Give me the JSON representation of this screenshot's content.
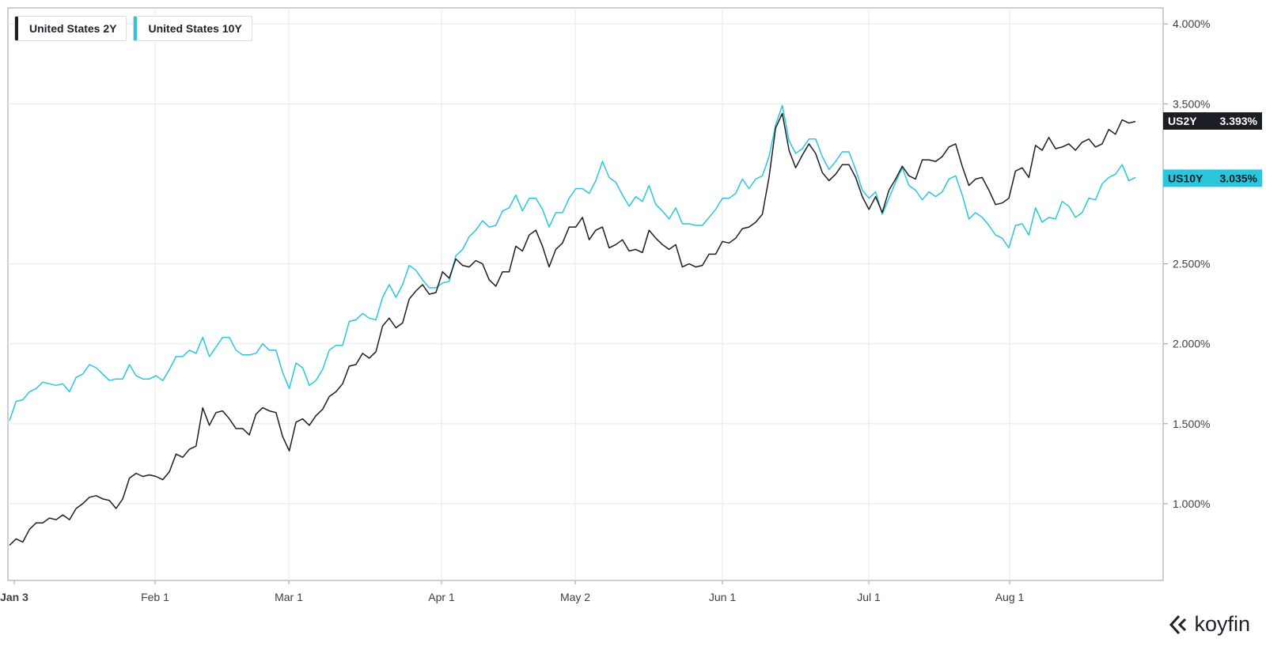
{
  "brand": {
    "name": "koyfin"
  },
  "legend": [
    {
      "label": "United States 2Y",
      "color": "#1b1e24"
    },
    {
      "label": "United States 10Y",
      "color": "#2bc6dc"
    }
  ],
  "chart_data": {
    "type": "line",
    "x_ticks": [
      "Jan 3",
      "Feb 1",
      "Mar 1",
      "Apr 1",
      "May 2",
      "Jun 1",
      "Jul 1",
      "Aug 1"
    ],
    "y_ticks": [
      "1.000%",
      "1.500%",
      "2.000%",
      "2.500%",
      "3.500%",
      "4.000%"
    ],
    "ylim": [
      0.52,
      4.1
    ],
    "grid": true,
    "legend_position": "top-left",
    "series": [
      {
        "name": "United States 2Y",
        "badge": "US2Y",
        "last_value": "3.393%",
        "color": "#1b1e24",
        "values": [
          0.74,
          0.78,
          0.76,
          0.84,
          0.88,
          0.88,
          0.91,
          0.9,
          0.93,
          0.9,
          0.97,
          1.0,
          1.04,
          1.05,
          1.03,
          1.02,
          0.97,
          1.03,
          1.16,
          1.19,
          1.17,
          1.18,
          1.17,
          1.15,
          1.2,
          1.31,
          1.29,
          1.34,
          1.36,
          1.6,
          1.49,
          1.57,
          1.58,
          1.53,
          1.47,
          1.47,
          1.43,
          1.56,
          1.6,
          1.58,
          1.57,
          1.42,
          1.33,
          1.51,
          1.53,
          1.49,
          1.55,
          1.59,
          1.67,
          1.7,
          1.75,
          1.86,
          1.87,
          1.94,
          1.91,
          1.95,
          2.11,
          2.16,
          2.1,
          2.13,
          2.28,
          2.33,
          2.37,
          2.31,
          2.32,
          2.45,
          2.41,
          2.53,
          2.49,
          2.48,
          2.52,
          2.5,
          2.4,
          2.36,
          2.45,
          2.45,
          2.61,
          2.58,
          2.68,
          2.71,
          2.61,
          2.48,
          2.59,
          2.63,
          2.73,
          2.73,
          2.79,
          2.65,
          2.71,
          2.73,
          2.6,
          2.62,
          2.65,
          2.58,
          2.59,
          2.57,
          2.71,
          2.66,
          2.62,
          2.59,
          2.62,
          2.48,
          2.5,
          2.48,
          2.49,
          2.56,
          2.56,
          2.64,
          2.63,
          2.66,
          2.72,
          2.73,
          2.76,
          2.81,
          3.04,
          3.35,
          3.44,
          3.21,
          3.1,
          3.18,
          3.25,
          3.19,
          3.07,
          3.02,
          3.06,
          3.12,
          3.12,
          3.04,
          2.92,
          2.84,
          2.92,
          2.82,
          2.96,
          3.03,
          3.11,
          3.05,
          3.03,
          3.15,
          3.15,
          3.14,
          3.17,
          3.23,
          3.25,
          3.11,
          2.99,
          3.03,
          3.04,
          2.96,
          2.87,
          2.88,
          2.91,
          3.08,
          3.1,
          3.04,
          3.24,
          3.21,
          3.29,
          3.22,
          3.23,
          3.25,
          3.21,
          3.26,
          3.28,
          3.23,
          3.25,
          3.34,
          3.31,
          3.4,
          3.38,
          3.39
        ]
      },
      {
        "name": "United States 10Y",
        "badge": "US10Y",
        "last_value": "3.035%",
        "color": "#2bc6dc",
        "values": [
          1.52,
          1.64,
          1.65,
          1.7,
          1.72,
          1.76,
          1.75,
          1.74,
          1.75,
          1.7,
          1.79,
          1.81,
          1.87,
          1.85,
          1.81,
          1.77,
          1.78,
          1.78,
          1.87,
          1.8,
          1.78,
          1.78,
          1.8,
          1.77,
          1.84,
          1.92,
          1.92,
          1.96,
          1.94,
          2.04,
          1.92,
          1.98,
          2.04,
          2.04,
          1.96,
          1.93,
          1.93,
          1.94,
          2.0,
          1.96,
          1.96,
          1.82,
          1.72,
          1.88,
          1.85,
          1.74,
          1.77,
          1.84,
          1.96,
          1.99,
          1.99,
          2.14,
          2.15,
          2.19,
          2.16,
          2.15,
          2.29,
          2.37,
          2.29,
          2.37,
          2.49,
          2.46,
          2.4,
          2.35,
          2.35,
          2.38,
          2.39,
          2.55,
          2.59,
          2.67,
          2.71,
          2.77,
          2.73,
          2.74,
          2.83,
          2.85,
          2.93,
          2.83,
          2.91,
          2.91,
          2.84,
          2.73,
          2.82,
          2.82,
          2.91,
          2.97,
          2.97,
          2.94,
          3.02,
          3.14,
          3.04,
          3.01,
          2.93,
          2.86,
          2.92,
          2.89,
          2.99,
          2.87,
          2.83,
          2.78,
          2.85,
          2.75,
          2.75,
          2.74,
          2.74,
          2.79,
          2.84,
          2.91,
          2.91,
          2.94,
          3.03,
          2.97,
          3.03,
          3.05,
          3.17,
          3.37,
          3.49,
          3.27,
          3.19,
          3.22,
          3.28,
          3.28,
          3.17,
          3.09,
          3.14,
          3.2,
          3.2,
          3.09,
          2.96,
          2.91,
          2.95,
          2.81,
          2.91,
          3.01,
          3.1,
          2.99,
          2.96,
          2.9,
          2.95,
          2.92,
          2.95,
          3.03,
          3.05,
          2.93,
          2.78,
          2.82,
          2.79,
          2.74,
          2.68,
          2.66,
          2.6,
          2.74,
          2.75,
          2.68,
          2.85,
          2.76,
          2.79,
          2.78,
          2.89,
          2.86,
          2.79,
          2.82,
          2.91,
          2.9,
          3.0,
          3.04,
          3.06,
          3.12,
          3.02,
          3.04
        ]
      }
    ]
  }
}
